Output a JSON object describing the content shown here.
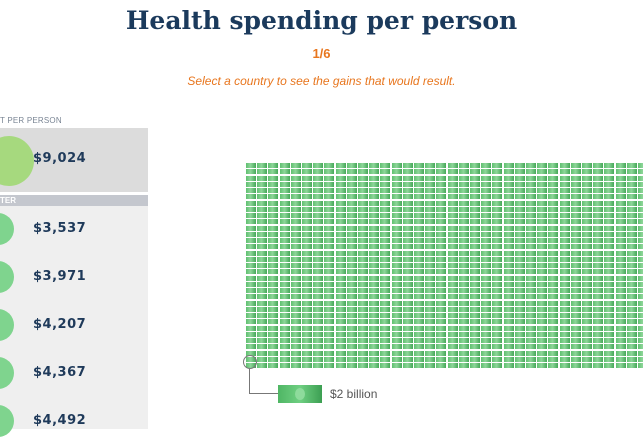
{
  "header": {
    "title": "Health spending per person",
    "step": "1/6",
    "subtitle": "Select a country to see the gains that would result."
  },
  "panel": {
    "header": "T PER PERSON",
    "selected": {
      "value": "$9,024"
    },
    "group_label": "TER",
    "items": [
      {
        "value": "$3,537"
      },
      {
        "value": "$3,971"
      },
      {
        "value": "$4,207"
      },
      {
        "value": "$4,367"
      },
      {
        "value": "$4,492"
      }
    ]
  },
  "visual": {
    "unit_label": "$2 billion",
    "bill_color": "#5fbf6f"
  }
}
